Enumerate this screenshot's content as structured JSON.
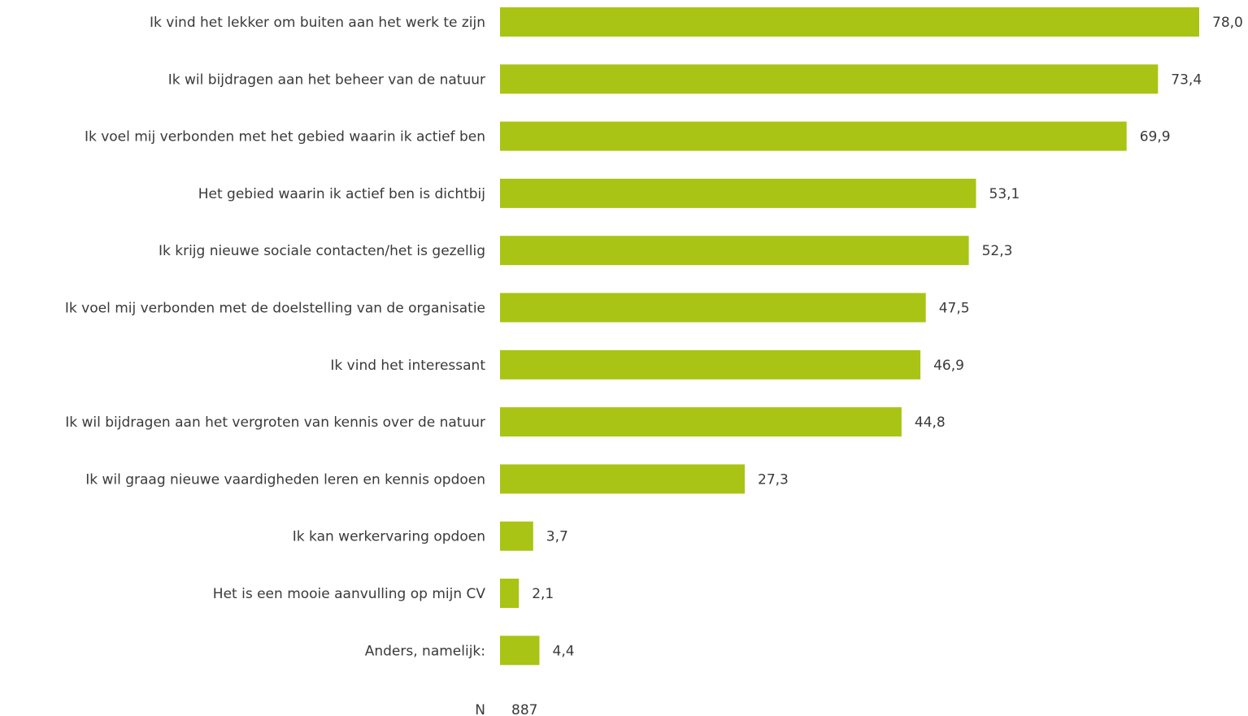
{
  "chart_data": {
    "type": "bar",
    "orientation": "horizontal",
    "categories": [
      "Ik vind het lekker om buiten aan het werk te zijn",
      "Ik wil bijdragen aan het beheer van de natuur",
      "Ik voel mij verbonden met het gebied waarin ik actief ben",
      "Het gebied waarin ik actief ben is dichtbij",
      "Ik krijg nieuwe sociale contacten/het is gezellig",
      "Ik voel mij verbonden met de doelstelling van de organisatie",
      "Ik vind het interessant",
      "Ik wil bijdragen aan het vergroten van kennis over de natuur",
      "Ik wil graag nieuwe vaardigheden leren en kennis opdoen",
      "Ik kan werkervaring opdoen",
      "Het is een mooie aanvulling op mijn CV",
      "Anders, namelijk:"
    ],
    "values": [
      78.0,
      73.4,
      69.9,
      53.1,
      52.3,
      47.5,
      46.9,
      44.8,
      27.3,
      3.7,
      2.1,
      4.4
    ],
    "value_labels": [
      "78,0",
      "73,4",
      "69,9",
      "53,1",
      "52,3",
      "47,5",
      "46,9",
      "44,8",
      "27,3",
      "3,7",
      "2,1",
      "4,4"
    ],
    "xlim": [
      0,
      78
    ],
    "bar_color": "#a9c414",
    "grid": false,
    "legend": "none",
    "footer": {
      "label": "N",
      "value": "887"
    }
  }
}
